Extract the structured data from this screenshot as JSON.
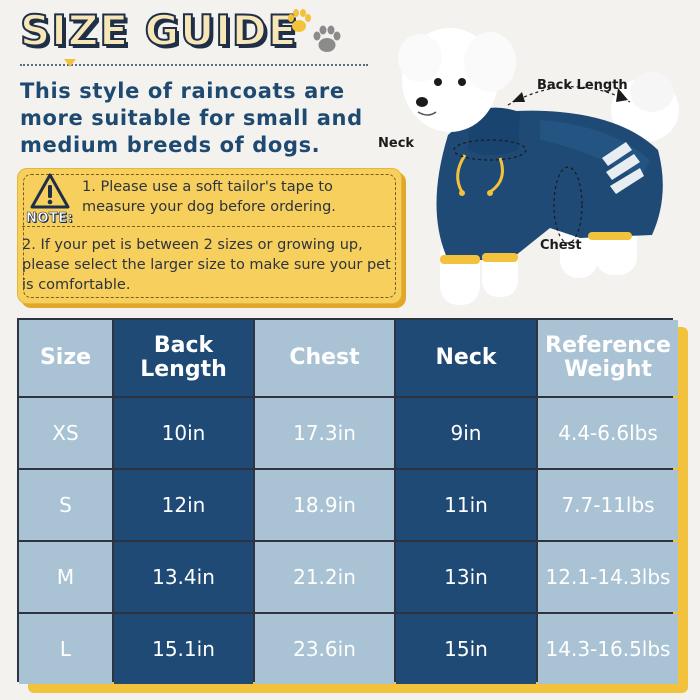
{
  "header": {
    "title": "SIZE GUIDE",
    "subtitle": "This style of raincoats are more suitable for small and medium breeds of dogs."
  },
  "note": {
    "label": "NOTE:",
    "line1": "1. Please use a soft tailor's tape to measure your dog before ordering.",
    "line2": "2. If your pet is between 2 sizes or growing up, please select the larger size to make sure your pet is comfortable."
  },
  "dog": {
    "labels": {
      "back_length": "Back Length",
      "neck": "Neck",
      "chest": "Chest"
    }
  },
  "table": {
    "headers": [
      "Size",
      "Back Length",
      "Chest",
      "Neck",
      "Reference Weight"
    ],
    "rows": [
      [
        "XS",
        "10in",
        "17.3in",
        "9in",
        "4.4-6.6lbs"
      ],
      [
        "S",
        "12in",
        "18.9in",
        "11in",
        "7.7-11lbs"
      ],
      [
        "M",
        "13.4in",
        "21.2in",
        "13in",
        "12.1-14.3lbs"
      ],
      [
        "L",
        "15.1in",
        "23.6in",
        "15in",
        "14.3-16.5lbs"
      ]
    ]
  },
  "colors": {
    "navy": "#1e4a75",
    "light_blue": "#a9c3d5",
    "yellow": "#f7cf5d",
    "background": "#f4f2ef"
  },
  "icons": [
    "paw-icon",
    "warning-icon",
    "measure-arrow-icon"
  ]
}
